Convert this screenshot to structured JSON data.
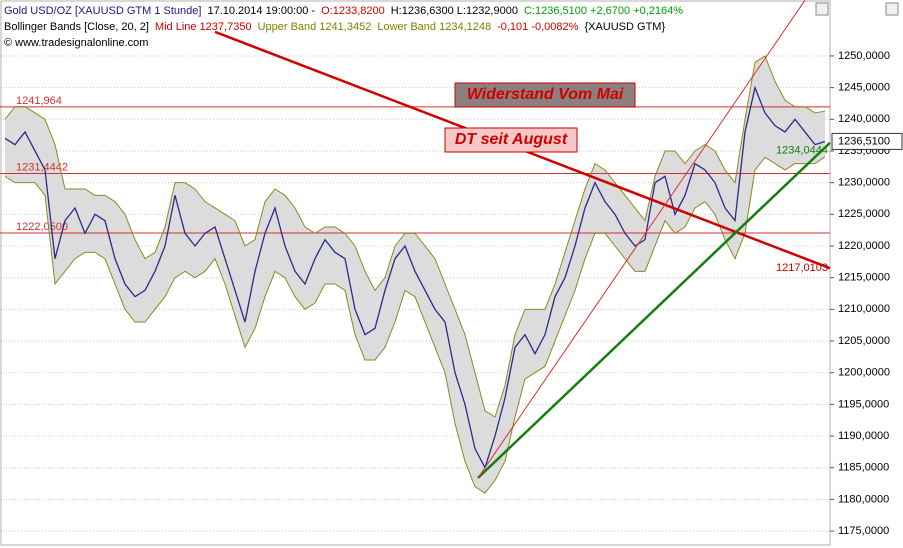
{
  "chart_data": {
    "type": "line",
    "header": [
      [
        {
          "text": "Gold USD/OZ [XAUUSD GTM  1 Stunde]",
          "color": "#1a1a80"
        },
        {
          "text": "17.10.2014 19:00:00 -",
          "color": "#000000"
        },
        {
          "text": "O:1233,8200",
          "color": "#d00000"
        },
        {
          "text": "H:1236,6300 L:1232,9000",
          "color": "#000000"
        },
        {
          "text": "C:1236,5100 +2,6700 +0,2164%",
          "color": "#00a000"
        }
      ],
      [
        {
          "text": "Bollinger Bands [Close, 20, 2]",
          "color": "#000000"
        },
        {
          "text": "Mid Line 1237,7350",
          "color": "#d00000"
        },
        {
          "text": "Upper Band 1241,3452",
          "color": "#808000"
        },
        {
          "text": "Lower Band 1234,1248",
          "color": "#808000"
        },
        {
          "text": "-0,101 -0,0082%",
          "color": "#d00000"
        },
        {
          "text": "{XAUUSD GTM}",
          "color": "#000000"
        }
      ],
      [
        {
          "text": "© www.tradesignalonline.com",
          "color": "#000000"
        }
      ]
    ],
    "categories": [
      null,
      null,
      null,
      null,
      null,
      null,
      null,
      null,
      null,
      null,
      null,
      null,
      null,
      null,
      null,
      null,
      null,
      null,
      null,
      null,
      null,
      null,
      null,
      null,
      null,
      null,
      null,
      null,
      null,
      null,
      null,
      null,
      null,
      null,
      null,
      null,
      null,
      null,
      null,
      null,
      null,
      null,
      null,
      null,
      null,
      null,
      null,
      null,
      null,
      null,
      null,
      null,
      null,
      null,
      null,
      null,
      null,
      null,
      null,
      null,
      null,
      null,
      null,
      null,
      null,
      null,
      null,
      null,
      null,
      null,
      null,
      null,
      null,
      null,
      null,
      null,
      null,
      null,
      null,
      null,
      null,
      null,
      null
    ],
    "series": [
      {
        "name": "Upper Band",
        "color": "#8a8a20",
        "values": [
          1240,
          1242,
          1242,
          1241,
          1240,
          1236,
          1229,
          1229,
          1229,
          1228,
          1228,
          1227,
          1225,
          1221,
          1218,
          1219,
          1223,
          1230,
          1230,
          1229,
          1227,
          1226,
          1225,
          1224,
          1220,
          1221,
          1227,
          1229,
          1228,
          1226,
          1223,
          1222,
          1223,
          1223,
          1222,
          1220,
          1216,
          1213,
          1215,
          1220,
          1222,
          1222,
          1220,
          1218,
          1214,
          1210,
          1206,
          1200,
          1194,
          1193,
          1198,
          1206,
          1210,
          1210,
          1210,
          1214,
          1219,
          1224,
          1229,
          1233,
          1232,
          1230,
          1228,
          1226,
          1224,
          1231,
          1235,
          1235,
          1233,
          1235,
          1236,
          1235,
          1232,
          1230,
          1240,
          1249,
          1250,
          1246,
          1243,
          1242,
          1242,
          1241,
          1241.3
        ]
      },
      {
        "name": "Lower Band",
        "color": "#8a8a20",
        "values": [
          1231,
          1230,
          1230,
          1230,
          1228,
          1214,
          1216,
          1218,
          1219,
          1219,
          1218,
          1214,
          1210,
          1208,
          1208,
          1210,
          1212,
          1215,
          1216,
          1215,
          1216,
          1218,
          1214,
          1209,
          1204,
          1207,
          1212,
          1216,
          1215,
          1212,
          1210,
          1211,
          1214,
          1214,
          1213,
          1206,
          1202,
          1202,
          1204,
          1208,
          1213,
          1212,
          1208,
          1204,
          1200,
          1192,
          1186,
          1182,
          1181,
          1183,
          1186,
          1193,
          1199,
          1200,
          1201,
          1205,
          1209,
          1213,
          1218,
          1222,
          1222,
          1220,
          1218,
          1216,
          1216,
          1220,
          1224,
          1222,
          1223,
          1226,
          1227,
          1225,
          1221,
          1218,
          1222,
          1232,
          1234,
          1233,
          1232,
          1233,
          1233,
          1233,
          1234.1
        ]
      },
      {
        "name": "Gold USD/OZ",
        "color": "#2a2a8a",
        "values": [
          1237,
          1236,
          1238,
          1235,
          1232,
          1218,
          1224,
          1226,
          1222,
          1225,
          1224,
          1218,
          1214,
          1212,
          1213,
          1216,
          1220,
          1228,
          1222,
          1220,
          1222,
          1223,
          1218,
          1213,
          1208,
          1216,
          1222,
          1226,
          1220,
          1216,
          1214,
          1218,
          1221,
          1219,
          1218,
          1210,
          1206,
          1207,
          1213,
          1218,
          1220,
          1216,
          1213,
          1210,
          1208,
          1200,
          1195,
          1188,
          1185,
          1190,
          1196,
          1204,
          1206,
          1203,
          1206,
          1212,
          1215,
          1220,
          1226,
          1230,
          1227,
          1225,
          1222,
          1220,
          1221,
          1230,
          1231,
          1225,
          1228,
          1233,
          1232,
          1230,
          1226,
          1224,
          1238,
          1245,
          1241,
          1239,
          1238,
          1240,
          1238,
          1236,
          1236.5
        ]
      }
    ],
    "band_fill": "#dcdcdc",
    "levels": [
      {
        "value": 1241.964,
        "label": "1241,964",
        "color": "#d03030"
      },
      {
        "value": 1231.4442,
        "label": "1231,4442",
        "color": "#d03030"
      },
      {
        "value": 1222.05,
        "label": "1222,0500",
        "color": "#d03030"
      }
    ],
    "trendlines": [
      {
        "x": [
          21,
          82.5
        ],
        "y": [
          1253.8,
          1216.5
        ],
        "color": "#d00000",
        "width": 2.5,
        "label": "1217,0103"
      },
      {
        "x": [
          47.3,
          82.5
        ],
        "y": [
          1183.4,
          1236.3
        ],
        "color": "#108010",
        "width": 2.5,
        "label": "1234,0444"
      },
      {
        "x": [
          47.3,
          80
        ],
        "y": [
          1183.4,
          1258.8
        ],
        "color": "#e03030",
        "width": 1
      }
    ],
    "annotations": [
      "Widerstand Vom Mai",
      "DT seit August"
    ],
    "last_price": {
      "value": 1236.51,
      "label": "1236,5100"
    },
    "ylim": [
      1172.8,
      1258.2
    ],
    "yticks": [
      {
        "value": 1175,
        "label": "1175,0000"
      },
      {
        "value": 1180,
        "label": "1180,0000"
      },
      {
        "value": 1185,
        "label": "1185,0000"
      },
      {
        "value": 1190,
        "label": "1190,0000"
      },
      {
        "value": 1195,
        "label": "1195,0000"
      },
      {
        "value": 1200,
        "label": "1200,0000"
      },
      {
        "value": 1205,
        "label": "1205,0000"
      },
      {
        "value": 1210,
        "label": "1210,0000"
      },
      {
        "value": 1215,
        "label": "1215,0000"
      },
      {
        "value": 1220,
        "label": "1220,0000"
      },
      {
        "value": 1225,
        "label": "1225,0000"
      },
      {
        "value": 1230,
        "label": "1230,0000"
      },
      {
        "value": 1235,
        "label": "1235,0000"
      },
      {
        "value": 1240,
        "label": "1240,0000"
      },
      {
        "value": 1245,
        "label": "1245,0000"
      },
      {
        "value": 1250,
        "label": "1250,0000"
      }
    ],
    "grid": true
  }
}
